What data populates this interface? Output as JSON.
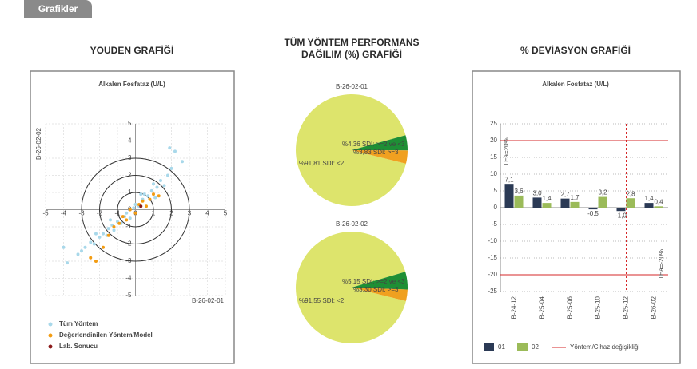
{
  "header": {
    "title": "Grafikler",
    "sections": [
      "YOUDEN GRAFİĞİ",
      "TÜM YÖNTEM PERFORMANS DAĞILIM (%) GRAFİĞİ",
      "% DEVİASYON GRAFİĞİ"
    ]
  },
  "chart_data": [
    {
      "type": "scatter",
      "title": "Alkalen Fosfataz (U/L)",
      "x_label": "B-26-02-01",
      "y_label": "B-26-02-02",
      "xlim": [
        -5,
        5
      ],
      "ylim": [
        -5,
        5
      ],
      "xticks": [
        -5,
        -4,
        -3,
        -2,
        -1,
        0,
        1,
        2,
        3,
        4,
        5
      ],
      "yticks": [
        -5,
        -4,
        -3,
        -2,
        -1,
        0,
        1,
        2,
        3,
        4,
        5
      ],
      "grid": true,
      "circles": [
        1,
        2,
        3
      ],
      "series": [
        {
          "name": "Tüm Yöntem",
          "color": "#a8d8ea",
          "x": [
            -4,
            -3.8,
            -3.2,
            -3,
            -2.8,
            -2.5,
            -2.3,
            -2,
            -1.8,
            -1.6,
            -1.5,
            -1.3,
            -1.2,
            -1,
            -0.8,
            -0.6,
            -0.5,
            -0.3,
            -0.1,
            0,
            0.2,
            0.4,
            0.5,
            0.7,
            0.9,
            1,
            1.2,
            1.4,
            1.6,
            1.8,
            2,
            2.2,
            1.9,
            2.6,
            -2.2,
            -1.4,
            0.3,
            1.1
          ],
          "values": [
            -2.2,
            -3.1,
            -2.6,
            -2.4,
            -2.2,
            -1.9,
            -2,
            -1.6,
            -1.4,
            -1.5,
            -1.1,
            -0.9,
            -1.2,
            -0.7,
            -0.8,
            -0.4,
            -0.2,
            -0.5,
            0.1,
            0.3,
            0.2,
            0.6,
            0.9,
            0.8,
            1.1,
            1.5,
            1.3,
            1.7,
            1.4,
            2,
            2.4,
            3.4,
            3.6,
            2.8,
            -1.4,
            -0.6,
            0.9,
            0.7
          ]
        },
        {
          "name": "Değerlendinilen Yöntem/Model",
          "color": "#f39c12",
          "x": [
            -2.2,
            -1.5,
            -1.2,
            -0.9,
            -0.7,
            -0.5,
            -0.3,
            0,
            0.2,
            0.4,
            0.6,
            0.8,
            1,
            1.3,
            -1.8,
            -2.5
          ],
          "values": [
            -3,
            -1.5,
            -1,
            -0.8,
            -0.4,
            -0.6,
            0,
            -0.2,
            0.3,
            0.5,
            0.2,
            0.6,
            0.9,
            0.8,
            -2.2,
            -2.8
          ]
        },
        {
          "name": "Lab. Sonucu",
          "color": "#8b1a1a",
          "x": [
            0.3
          ],
          "values": [
            0.2
          ]
        }
      ]
    },
    {
      "type": "pie",
      "title": "B-26-02-01",
      "values": [
        91.81,
        4.36,
        3.83
      ],
      "value_labels": [
        "%91,81 SDI: <2",
        "%4,36 SDI: >=2 ve <3",
        "%3,83 SDI: >=3"
      ],
      "colors": [
        "#dde46c",
        "#1e8f35",
        "#f0a020"
      ]
    },
    {
      "type": "pie",
      "title": "B-26-02-02",
      "values": [
        91.55,
        5.15,
        3.3
      ],
      "value_labels": [
        "%91,55 SDI: <2",
        "%5,15 SDI: >=2 ve <3",
        "%3,30 SDI: >=3"
      ],
      "colors": [
        "#dde46c",
        "#1e8f35",
        "#f0a020"
      ]
    },
    {
      "type": "bar",
      "title": "Alkalen Fosfataz (U/L)",
      "categories": [
        "B-24-12",
        "B-25-04",
        "B-25-06",
        "B-25-10",
        "B-25-12",
        "B-26-02"
      ],
      "series": [
        {
          "name": "01",
          "color": "#2b3a55",
          "values": [
            7.1,
            3.0,
            2.7,
            -0.5,
            -1.0,
            1.4
          ],
          "value_labels": [
            "7,1",
            "3,0",
            "2,7",
            "-0,5",
            "-1,0",
            "1,4"
          ]
        },
        {
          "name": "02",
          "color": "#9bbb59",
          "values": [
            3.6,
            1.4,
            1.7,
            3.2,
            2.8,
            0.4
          ],
          "value_labels": [
            "3,6",
            "1,4",
            "1,7",
            "3,2",
            "2,8",
            "0,4"
          ]
        }
      ],
      "ylim": [
        -25,
        25
      ],
      "yticks": [
        -25,
        -20,
        -15,
        -10,
        -5,
        0,
        5,
        10,
        15,
        20,
        25
      ],
      "grid": true,
      "hlines": [
        {
          "value": 20,
          "label": "TEa=20%"
        },
        {
          "value": -20,
          "label": "TEa=-20%"
        }
      ],
      "change": {
        "at": "B-25-12",
        "name": "Yöntem/Cihaz değişikliği",
        "color": "#d62728"
      }
    }
  ]
}
